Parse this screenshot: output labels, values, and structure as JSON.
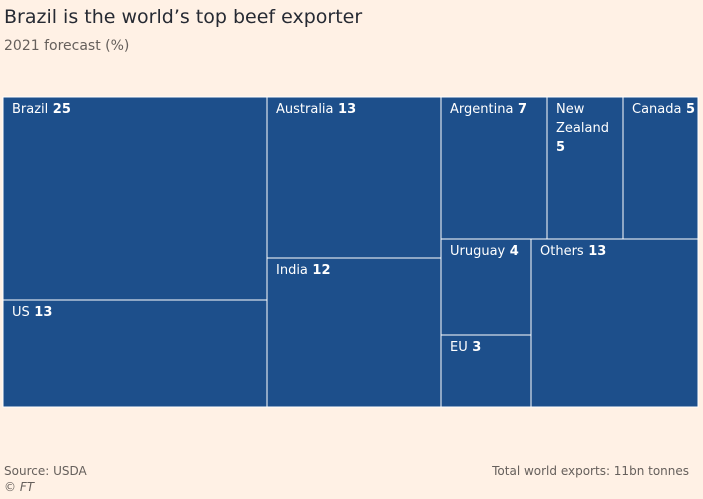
{
  "chart_data": {
    "type": "treemap",
    "title": "Brazil is the world’s top beef exporter",
    "subtitle": "2021 forecast (%)",
    "unit": "%",
    "items": [
      {
        "name": "Brazil",
        "value": 25,
        "label_lines": [
          "Brazil"
        ]
      },
      {
        "name": "US",
        "value": 13,
        "label_lines": [
          "US"
        ]
      },
      {
        "name": "Australia",
        "value": 13,
        "label_lines": [
          "Australia"
        ]
      },
      {
        "name": "India",
        "value": 12,
        "label_lines": [
          "India"
        ]
      },
      {
        "name": "Argentina",
        "value": 7,
        "label_lines": [
          "Argentina"
        ]
      },
      {
        "name": "New Zealand",
        "value": 5,
        "label_lines": [
          "New",
          "Zealand"
        ]
      },
      {
        "name": "Canada",
        "value": 5,
        "label_lines": [
          "Canada"
        ]
      },
      {
        "name": "Uruguay",
        "value": 4,
        "label_lines": [
          "Uruguay"
        ]
      },
      {
        "name": "EU",
        "value": 3,
        "label_lines": [
          "EU"
        ]
      },
      {
        "name": "Others",
        "value": 13,
        "label_lines": [
          "Others"
        ]
      }
    ],
    "colors": {
      "cell_fill": "#1d4f8b",
      "cell_border": "#ffffff",
      "label": "#ffffff"
    }
  },
  "footer": {
    "source": "Source: USDA",
    "credit": "© FT",
    "total": "Total world exports: 11bn tonnes"
  }
}
